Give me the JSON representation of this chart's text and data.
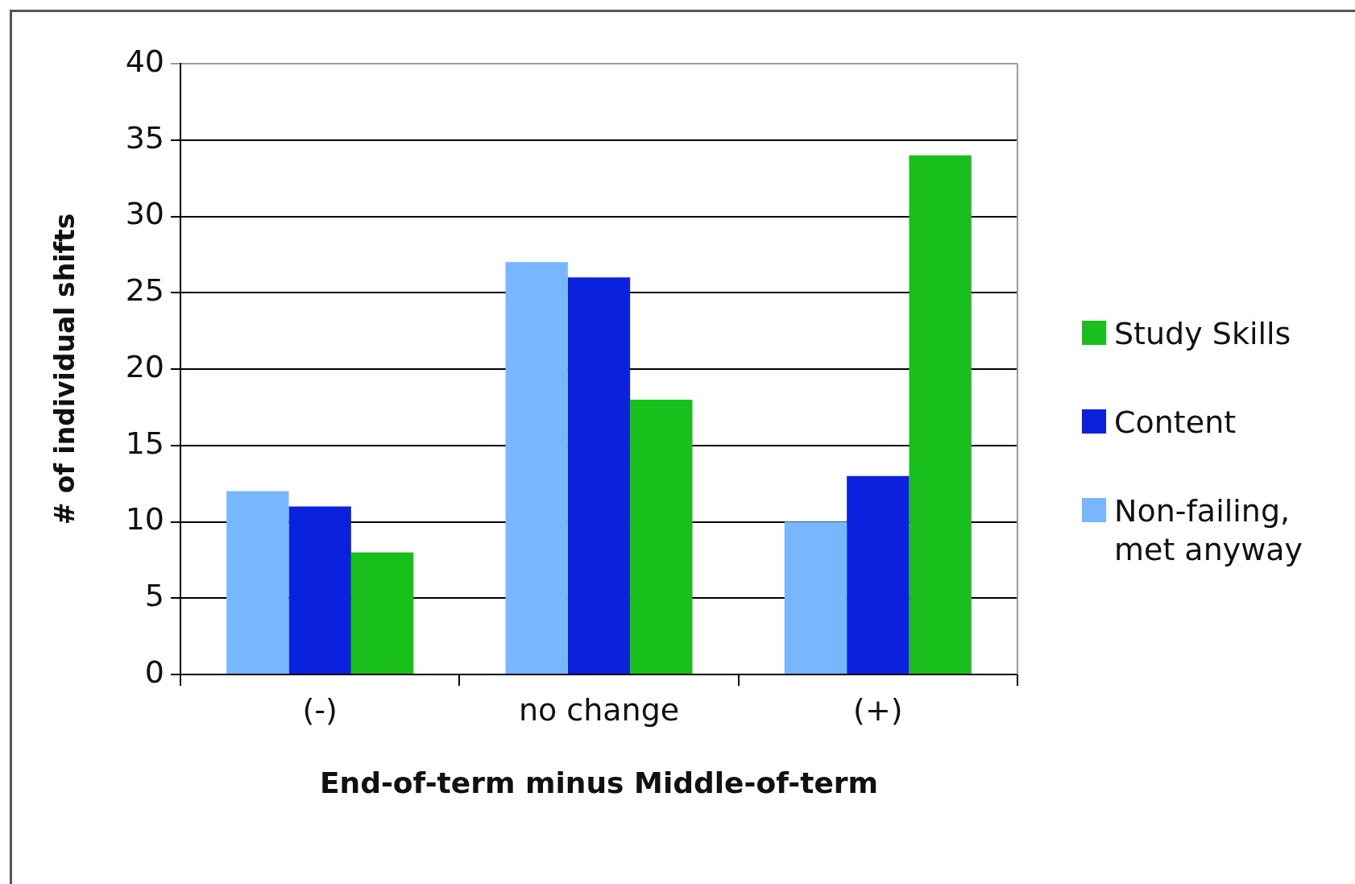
{
  "chart_data": {
    "type": "bar",
    "xlabel": "End-of-term minus Middle-of-term",
    "ylabel": "# of individual shifts",
    "categories": [
      "(-)",
      "no change",
      "(+)"
    ],
    "series": [
      {
        "name": "Non-failing, met anyway",
        "color": "#77b7ff",
        "values": [
          12,
          27,
          10
        ]
      },
      {
        "name": "Content",
        "color": "#0a22dd",
        "values": [
          11,
          26,
          13
        ]
      },
      {
        "name": "Study Skills",
        "color": "#19bf1a",
        "values": [
          8,
          18,
          34
        ]
      }
    ],
    "ylim": [
      0,
      40
    ],
    "yticks": [
      0,
      5,
      10,
      15,
      20,
      25,
      30,
      35,
      40
    ],
    "grid": "y",
    "legend": "right"
  }
}
